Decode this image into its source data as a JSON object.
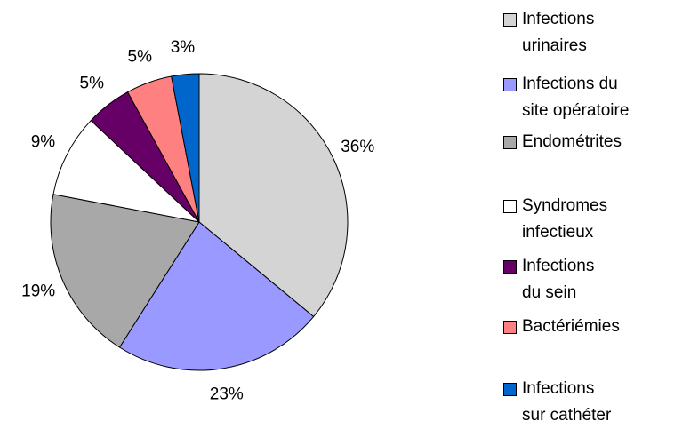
{
  "chart_data": {
    "type": "pie",
    "categories": [
      "Infections\nurinaires",
      "Infections du\nsite opératoire",
      "Endométrites",
      "Syndromes\n infectieux",
      "Infections\ndu sein",
      "Bactériémies",
      "Infections\nsur cathéter"
    ],
    "values": [
      36,
      23,
      19,
      9,
      5,
      5,
      3
    ],
    "value_labels": [
      "36%",
      "23%",
      "19%",
      "9%",
      "5%",
      "5%",
      "3%"
    ],
    "colors": [
      "#d4d4d4",
      "#9999ff",
      "#a8a8a8",
      "#ffffff",
      "#660066",
      "#ff8080",
      "#0066cc"
    ]
  }
}
